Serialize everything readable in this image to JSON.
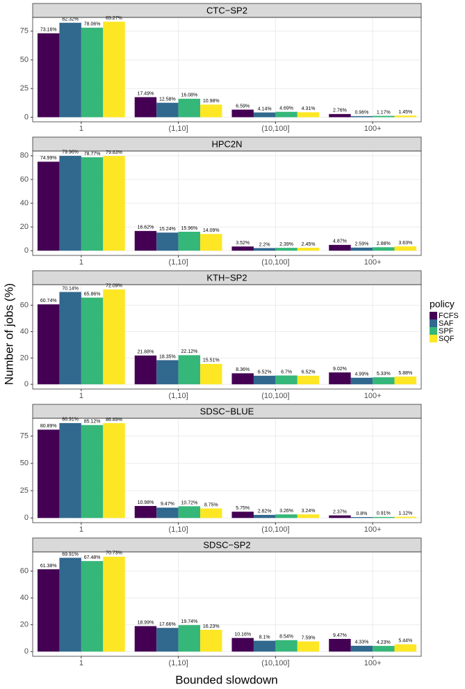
{
  "x_label": "Bounded slowdown",
  "y_label": "Number of jobs (%)",
  "legend": {
    "title": "policy",
    "entries": [
      {
        "name": "FCFS",
        "color": "#440154"
      },
      {
        "name": "SAF",
        "color": "#31688e"
      },
      {
        "name": "SPF",
        "color": "#35b779"
      },
      {
        "name": "SQF",
        "color": "#fde725"
      }
    ]
  },
  "chart_data": [
    {
      "type": "bar",
      "title": "CTC−SP2",
      "categories": [
        "1",
        "(1,10]",
        "(10,100]",
        "100+"
      ],
      "series": [
        {
          "values": [
            73.16,
            17.49,
            6.59,
            2.76
          ],
          "value_labels": [
            "73.16%",
            "17.49%",
            "6.59%",
            "2.76%"
          ]
        },
        {
          "values": [
            82.32,
            12.58,
            4.14,
            0.96
          ],
          "value_labels": [
            "82.32%",
            "12.58%",
            "4.14%",
            "0.96%"
          ]
        },
        {
          "values": [
            78.06,
            16.08,
            4.69,
            1.17
          ],
          "value_labels": [
            "78.06%",
            "16.08%",
            "4.69%",
            "1.17%"
          ]
        },
        {
          "values": [
            83.27,
            10.98,
            4.31,
            1.45
          ],
          "value_labels": [
            "83.27%",
            "10.98%",
            "4.31%",
            "1.45%"
          ]
        }
      ],
      "ylim": [
        -4,
        87
      ],
      "yticks": [
        0,
        25,
        50,
        75
      ],
      "grid": true
    },
    {
      "type": "bar",
      "title": "HPC2N",
      "categories": [
        "1",
        "(1,10]",
        "(10,100]",
        "100+"
      ],
      "series": [
        {
          "values": [
            74.99,
            16.62,
            3.52,
            4.87
          ],
          "value_labels": [
            "74.99%",
            "16.62%",
            "3.52%",
            "4.87%"
          ]
        },
        {
          "values": [
            79.96,
            15.24,
            2.2,
            2.59
          ],
          "value_labels": [
            "79.96%",
            "15.24%",
            "2.2%",
            "2.59%"
          ]
        },
        {
          "values": [
            78.77,
            15.96,
            2.39,
            2.88
          ],
          "value_labels": [
            "78.77%",
            "15.96%",
            "2.39%",
            "2.88%"
          ]
        },
        {
          "values": [
            79.83,
            14.09,
            2.45,
            3.63
          ],
          "value_labels": [
            "79.83%",
            "14.09%",
            "2.45%",
            "3.63%"
          ]
        }
      ],
      "ylim": [
        -4,
        84
      ],
      "yticks": [
        0,
        20,
        40,
        60,
        80
      ],
      "grid": true
    },
    {
      "type": "bar",
      "title": "KTH−SP2",
      "categories": [
        "1",
        "(1,10]",
        "(10,100]",
        "100+"
      ],
      "series": [
        {
          "values": [
            60.74,
            21.88,
            8.36,
            9.02
          ],
          "value_labels": [
            "60.74%",
            "21.88%",
            "8.36%",
            "9.02%"
          ]
        },
        {
          "values": [
            70.14,
            18.35,
            6.52,
            4.99
          ],
          "value_labels": [
            "70.14%",
            "18.35%",
            "6.52%",
            "4.99%"
          ]
        },
        {
          "values": [
            65.86,
            22.12,
            6.7,
            5.33
          ],
          "value_labels": [
            "65.86%",
            "22.12%",
            "6.7%",
            "5.33%"
          ]
        },
        {
          "values": [
            72.09,
            15.51,
            6.52,
            5.88
          ],
          "value_labels": [
            "72.09%",
            "15.51%",
            "6.52%",
            "5.88%"
          ]
        }
      ],
      "ylim": [
        -3.6,
        75.7
      ],
      "yticks": [
        0,
        20,
        40,
        60
      ],
      "grid": true
    },
    {
      "type": "bar",
      "title": "SDSC−BLUE",
      "categories": [
        "1",
        "(1,10]",
        "(10,100]",
        "100+"
      ],
      "series": [
        {
          "values": [
            80.89,
            10.98,
            5.75,
            2.37
          ],
          "value_labels": [
            "80.89%",
            "10.98%",
            "5.75%",
            "2.37%"
          ]
        },
        {
          "values": [
            86.91,
            9.47,
            2.82,
            0.8
          ],
          "value_labels": [
            "86.91%",
            "9.47%",
            "2.82%",
            "0.8%"
          ]
        },
        {
          "values": [
            85.12,
            10.72,
            3.26,
            0.91
          ],
          "value_labels": [
            "85.12%",
            "10.72%",
            "3.26%",
            "0.91%"
          ]
        },
        {
          "values": [
            86.89,
            8.75,
            3.24,
            1.12
          ],
          "value_labels": [
            "86.89%",
            "8.75%",
            "3.24%",
            "1.12%"
          ]
        }
      ],
      "ylim": [
        -4.3,
        91.3
      ],
      "yticks": [
        0,
        25,
        50,
        75
      ],
      "grid": true
    },
    {
      "type": "bar",
      "title": "SDSC−SP2",
      "categories": [
        "1",
        "(1,10]",
        "(10,100]",
        "100+"
      ],
      "series": [
        {
          "values": [
            61.38,
            18.99,
            10.16,
            9.47
          ],
          "value_labels": [
            "61.38%",
            "18.99%",
            "10.16%",
            "9.47%"
          ]
        },
        {
          "values": [
            69.91,
            17.66,
            8.1,
            4.33
          ],
          "value_labels": [
            "69.91%",
            "17.66%",
            "8.1%",
            "4.33%"
          ]
        },
        {
          "values": [
            67.48,
            19.74,
            8.54,
            4.23
          ],
          "value_labels": [
            "67.48%",
            "19.74%",
            "8.54%",
            "4.23%"
          ]
        },
        {
          "values": [
            70.73,
            16.23,
            7.59,
            5.44
          ],
          "value_labels": [
            "70.73%",
            "16.23%",
            "7.59%",
            "5.44%"
          ]
        }
      ],
      "ylim": [
        -3.5,
        74.3
      ],
      "yticks": [
        0,
        20,
        40,
        60
      ],
      "grid": true
    }
  ]
}
